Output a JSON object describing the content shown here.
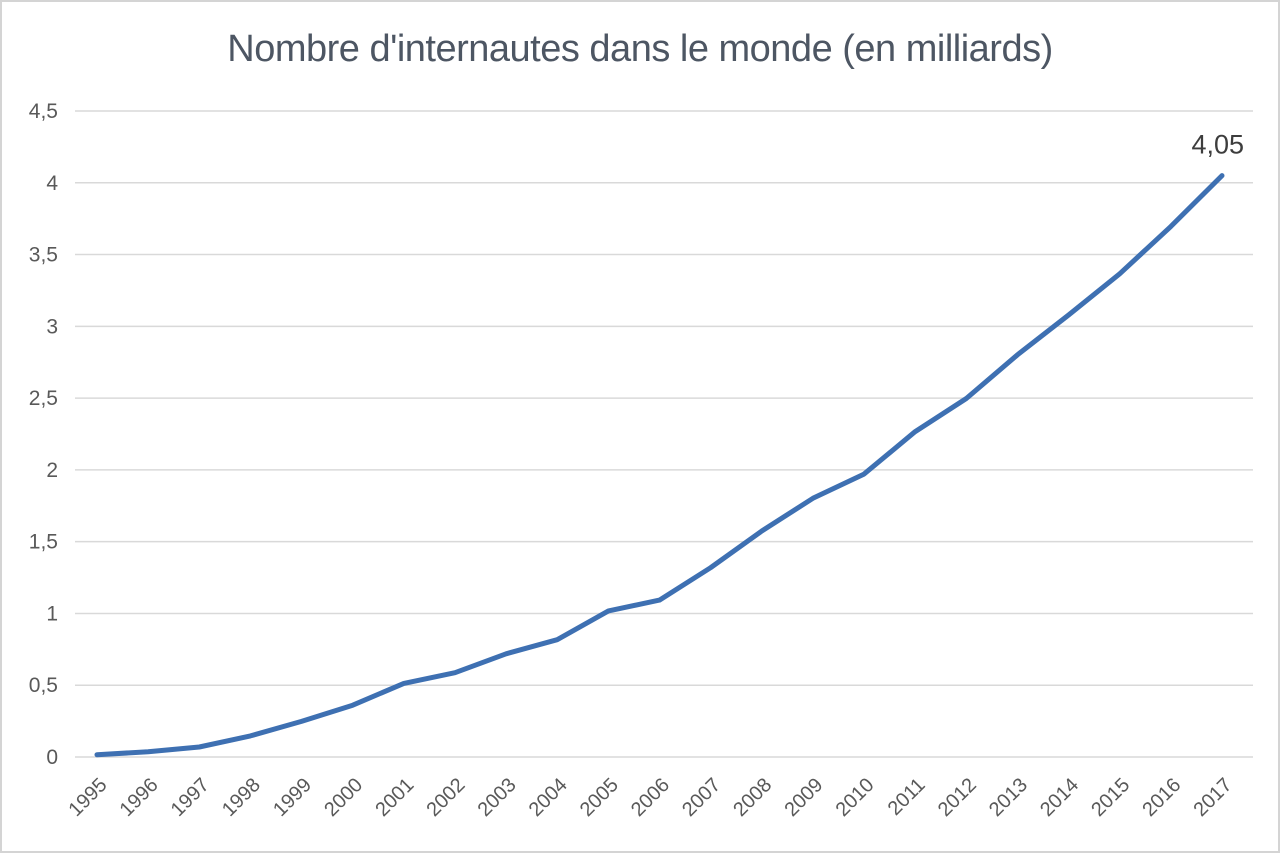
{
  "chart_data": {
    "type": "line",
    "title": "Nombre d'internautes dans le monde (en milliards)",
    "categories": [
      "1995",
      "1996",
      "1997",
      "1998",
      "1999",
      "2000",
      "2001",
      "2002",
      "2003",
      "2004",
      "2005",
      "2006",
      "2007",
      "2008",
      "2009",
      "2010",
      "2011",
      "2012",
      "2013",
      "2014",
      "2015",
      "2016",
      "2017"
    ],
    "series": [
      {
        "name": "Nombre d'internautes (milliards)",
        "color": "#3e70b2",
        "values": [
          0.016,
          0.036,
          0.07,
          0.147,
          0.248,
          0.361,
          0.513,
          0.587,
          0.719,
          0.817,
          1.018,
          1.093,
          1.319,
          1.574,
          1.802,
          1.971,
          2.267,
          2.497,
          2.802,
          3.079,
          3.366,
          3.696,
          4.05
        ]
      }
    ],
    "y_ticks": [
      {
        "label": "0",
        "value": 0
      },
      {
        "label": "0,5",
        "value": 0.5
      },
      {
        "label": "1",
        "value": 1
      },
      {
        "label": "1,5",
        "value": 1.5
      },
      {
        "label": "2",
        "value": 2
      },
      {
        "label": "2,5",
        "value": 2.5
      },
      {
        "label": "3",
        "value": 3
      },
      {
        "label": "3,5",
        "value": 3.5
      },
      {
        "label": "4",
        "value": 4
      },
      {
        "label": "4,5",
        "value": 4.5
      }
    ],
    "ylim": [
      0,
      4.5
    ],
    "xlabel": "",
    "ylabel": "",
    "grid": true,
    "gridline_color": "#d9d9d9",
    "axis_label_color": "#595959",
    "legend": "none",
    "data_labels": {
      "last_point_label": "4,05"
    }
  }
}
